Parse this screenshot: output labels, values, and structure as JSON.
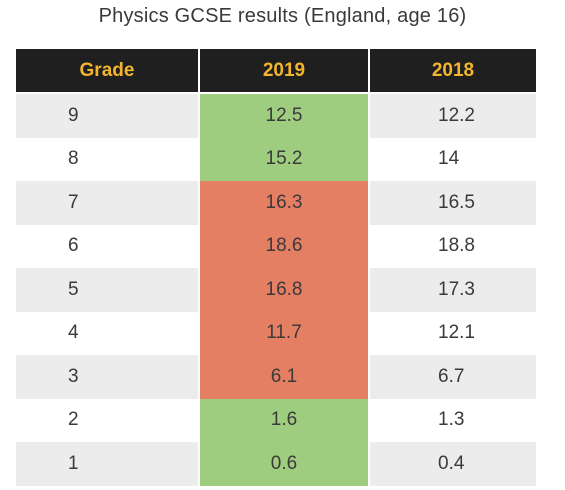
{
  "title": "Physics GCSE results (England, age 16)",
  "chart_data": {
    "type": "table",
    "title": "Physics GCSE results (England, age 16)",
    "columns": [
      "Grade",
      "2019",
      "2018"
    ],
    "rows": [
      {
        "grade": "9",
        "y2019": "12.5",
        "y2018": "12.2",
        "status": "up"
      },
      {
        "grade": "8",
        "y2019": "15.2",
        "y2018": "14",
        "status": "up"
      },
      {
        "grade": "7",
        "y2019": "16.3",
        "y2018": "16.5",
        "status": "down"
      },
      {
        "grade": "6",
        "y2019": "18.6",
        "y2018": "18.8",
        "status": "down"
      },
      {
        "grade": "5",
        "y2019": "16.8",
        "y2018": "17.3",
        "status": "down"
      },
      {
        "grade": "4",
        "y2019": "11.7",
        "y2018": "12.1",
        "status": "down"
      },
      {
        "grade": "3",
        "y2019": "6.1",
        "y2018": "6.7",
        "status": "down"
      },
      {
        "grade": "2",
        "y2019": "1.6",
        "y2018": "1.3",
        "status": "up"
      },
      {
        "grade": "1",
        "y2019": "0.6",
        "y2018": "0.4",
        "status": "up"
      }
    ]
  },
  "colors": {
    "header_bg": "#1f1f1f",
    "header_text": "#f2b52b",
    "increase": "#9fcd7f",
    "decrease": "#e47f63",
    "stripe": "#ececec"
  }
}
